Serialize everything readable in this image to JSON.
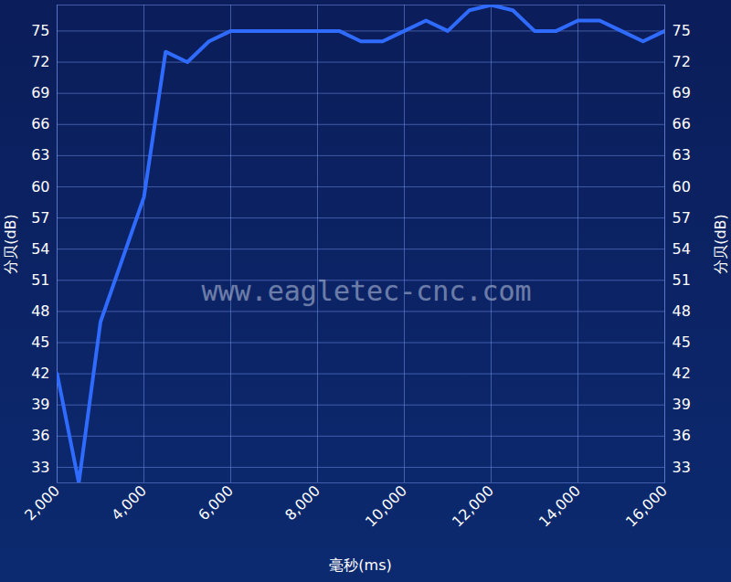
{
  "chart_data": {
    "type": "line",
    "x_label": "毫秒(ms)",
    "y_label": "分贝(dB)",
    "annotation": "www.eagletec-cnc.com",
    "x": [
      2000,
      2500,
      3000,
      3500,
      4000,
      4500,
      5000,
      5500,
      6000,
      6500,
      7000,
      7500,
      8000,
      8500,
      9000,
      9500,
      10000,
      10500,
      11000,
      11500,
      12000,
      12500,
      13000,
      13500,
      14000,
      14500,
      15000,
      15500,
      16000
    ],
    "values": [
      42,
      31.5,
      47,
      53,
      59,
      73,
      72,
      74,
      75,
      75,
      75,
      75,
      75,
      75,
      74,
      74,
      75,
      76,
      75,
      77,
      77.5,
      77,
      75,
      75,
      76,
      76,
      75,
      74,
      75
    ],
    "color": "#2f6bff",
    "xlim": [
      2000,
      16000
    ],
    "ylim": [
      31.5,
      77.5
    ],
    "xticks": [
      2000,
      4000,
      6000,
      8000,
      10000,
      12000,
      14000,
      16000
    ],
    "yticks": [
      33,
      36,
      39,
      42,
      45,
      48,
      51,
      54,
      57,
      60,
      63,
      66,
      69,
      72,
      75
    ],
    "grid": true
  }
}
